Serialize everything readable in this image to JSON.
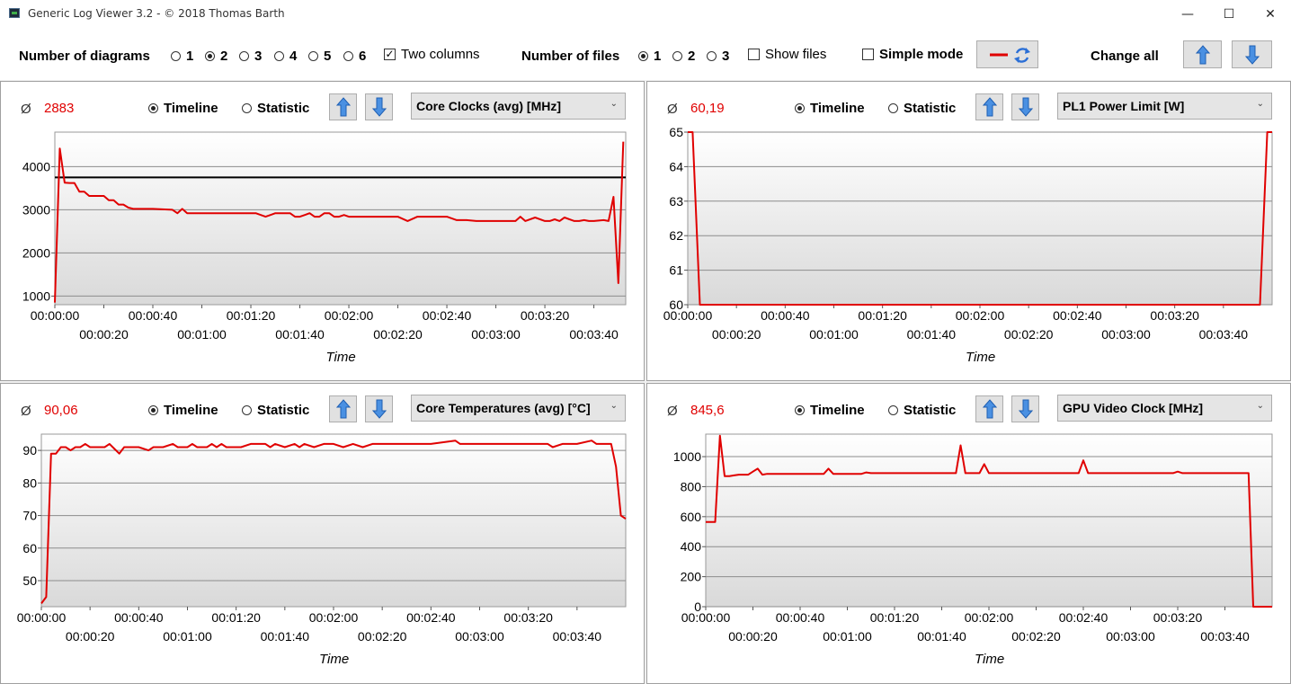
{
  "window": {
    "title": "Generic Log Viewer 3.2 - © 2018 Thomas Barth",
    "minimize": "—",
    "maximize": "☐",
    "close": "✕"
  },
  "toolbar": {
    "diagrams_label": "Number of diagrams",
    "diagram_options": [
      "1",
      "2",
      "3",
      "4",
      "5",
      "6"
    ],
    "diagrams_selected": "2",
    "two_columns_label": "Two columns",
    "two_columns_checked": true,
    "files_label": "Number of files",
    "file_options": [
      "1",
      "2",
      "3"
    ],
    "files_selected": "1",
    "show_files_label": "Show files",
    "show_files_checked": false,
    "simple_mode_label": "Simple mode",
    "simple_mode_checked": false,
    "change_all_label": "Change all",
    "line_color": "#e00000",
    "accent_color": "#2b6fd6"
  },
  "panels": [
    {
      "avg_symbol": "Ø",
      "avg": "2883",
      "timeline_label": "Timeline",
      "statistic_label": "Statistic",
      "selected_view": "Timeline",
      "sensor": "Core Clocks (avg) [MHz]",
      "x_title": "Time"
    },
    {
      "avg_symbol": "Ø",
      "avg": "60,19",
      "timeline_label": "Timeline",
      "statistic_label": "Statistic",
      "selected_view": "Timeline",
      "sensor": "PL1 Power Limit [W]",
      "x_title": "Time"
    },
    {
      "avg_symbol": "Ø",
      "avg": "90,06",
      "timeline_label": "Timeline",
      "statistic_label": "Statistic",
      "selected_view": "Timeline",
      "sensor": "Core Temperatures (avg) [°C]",
      "x_title": "Time"
    },
    {
      "avg_symbol": "Ø",
      "avg": "845,6",
      "timeline_label": "Timeline",
      "statistic_label": "Statistic",
      "selected_view": "Timeline",
      "sensor": "GPU Video Clock [MHz]",
      "x_title": "Time"
    }
  ],
  "chart_data": [
    {
      "type": "line",
      "title": "Core Clocks (avg) [MHz]",
      "xlabel": "Time",
      "ylabel": "",
      "x_unit": "seconds",
      "xlim": [
        0,
        233
      ],
      "ylim": [
        800,
        4800
      ],
      "yticks": [
        1000,
        2000,
        3000,
        4000
      ],
      "xticks": [
        "00:00:00",
        "00:00:20",
        "00:00:40",
        "00:01:00",
        "00:01:20",
        "00:01:40",
        "00:02:00",
        "00:02:20",
        "00:02:40",
        "00:03:00",
        "00:03:20",
        "00:03:40"
      ],
      "reference_line": 3750,
      "series": [
        {
          "x": [
            0,
            2,
            4,
            6,
            8,
            10,
            12,
            14,
            16,
            18,
            20,
            22,
            24,
            26,
            28,
            30,
            32,
            34,
            36,
            40,
            44,
            48,
            50,
            52,
            54,
            58,
            62,
            66,
            70,
            74,
            78,
            80,
            82,
            86,
            88,
            90,
            92,
            94,
            96,
            98,
            100,
            102,
            104,
            106,
            108,
            110,
            112,
            114,
            116,
            118,
            120,
            124,
            128,
            132,
            136,
            140,
            144,
            148,
            152,
            156,
            158,
            160,
            164,
            168,
            172,
            176,
            180,
            184,
            188,
            190,
            192,
            196,
            200,
            202,
            204,
            206,
            208,
            212,
            214,
            216,
            218,
            220,
            224,
            226,
            228,
            230,
            232
          ],
          "y": [
            850,
            4420,
            3630,
            3620,
            3620,
            3420,
            3420,
            3320,
            3320,
            3320,
            3320,
            3220,
            3220,
            3120,
            3120,
            3050,
            3020,
            3020,
            3020,
            3020,
            3010,
            3000,
            2920,
            3020,
            2920,
            2920,
            2920,
            2920,
            2920,
            2920,
            2920,
            2920,
            2920,
            2840,
            2880,
            2920,
            2920,
            2920,
            2920,
            2840,
            2840,
            2880,
            2920,
            2840,
            2840,
            2920,
            2920,
            2840,
            2840,
            2880,
            2840,
            2840,
            2840,
            2840,
            2840,
            2840,
            2740,
            2840,
            2840,
            2840,
            2840,
            2840,
            2760,
            2760,
            2740,
            2740,
            2740,
            2740,
            2740,
            2840,
            2740,
            2820,
            2740,
            2740,
            2780,
            2740,
            2820,
            2740,
            2740,
            2760,
            2740,
            2740,
            2760,
            2740,
            3300,
            1300,
            4580
          ]
        }
      ]
    },
    {
      "type": "line",
      "title": "PL1 Power Limit [W]",
      "xlabel": "Time",
      "ylabel": "",
      "x_unit": "seconds",
      "xlim": [
        0,
        240
      ],
      "ylim": [
        60,
        65
      ],
      "yticks": [
        60,
        61,
        62,
        63,
        64,
        65
      ],
      "xticks": [
        "00:00:00",
        "00:00:20",
        "00:00:40",
        "00:01:00",
        "00:01:20",
        "00:01:40",
        "00:02:00",
        "00:02:20",
        "00:02:40",
        "00:03:00",
        "00:03:20",
        "00:03:40"
      ],
      "series": [
        {
          "x": [
            0,
            2,
            5,
            235,
            238,
            240
          ],
          "y": [
            65,
            65,
            60,
            60,
            65,
            65
          ]
        }
      ]
    },
    {
      "type": "line",
      "title": "Core Temperatures (avg) [°C]",
      "xlabel": "Time",
      "ylabel": "",
      "x_unit": "seconds",
      "xlim": [
        0,
        240
      ],
      "ylim": [
        42,
        95
      ],
      "yticks": [
        50,
        60,
        70,
        80,
        90
      ],
      "xticks": [
        "00:00:00",
        "00:00:20",
        "00:00:40",
        "00:01:00",
        "00:01:20",
        "00:01:40",
        "00:02:00",
        "00:02:20",
        "00:02:40",
        "00:03:00",
        "00:03:20",
        "00:03:40"
      ],
      "series": [
        {
          "x": [
            0,
            2,
            4,
            6,
            8,
            10,
            12,
            14,
            16,
            18,
            20,
            22,
            24,
            26,
            28,
            32,
            34,
            36,
            40,
            44,
            46,
            50,
            54,
            56,
            60,
            62,
            64,
            68,
            70,
            72,
            74,
            76,
            78,
            82,
            86,
            90,
            92,
            94,
            96,
            100,
            104,
            106,
            108,
            112,
            116,
            120,
            124,
            128,
            132,
            136,
            138,
            140,
            150,
            160,
            170,
            172,
            180,
            190,
            194,
            198,
            208,
            210,
            214,
            216,
            220,
            226,
            228,
            230,
            234,
            236,
            238,
            240
          ],
          "y": [
            43,
            45,
            89,
            89,
            91,
            91,
            90,
            91,
            91,
            92,
            91,
            91,
            91,
            91,
            92,
            89,
            91,
            91,
            91,
            90,
            91,
            91,
            92,
            91,
            91,
            92,
            91,
            91,
            92,
            91,
            92,
            91,
            91,
            91,
            92,
            92,
            92,
            91,
            92,
            91,
            92,
            91,
            92,
            91,
            92,
            92,
            91,
            92,
            91,
            92,
            92,
            92,
            92,
            92,
            93,
            92,
            92,
            92,
            92,
            92,
            92,
            91,
            92,
            92,
            92,
            93,
            92,
            92,
            92,
            85,
            70,
            69
          ]
        }
      ]
    },
    {
      "type": "line",
      "title": "GPU Video Clock [MHz]",
      "xlabel": "Time",
      "ylabel": "",
      "x_unit": "seconds",
      "xlim": [
        0,
        240
      ],
      "ylim": [
        0,
        1150
      ],
      "yticks": [
        0,
        200,
        400,
        600,
        800,
        1000
      ],
      "xticks": [
        "00:00:00",
        "00:00:20",
        "00:00:40",
        "00:01:00",
        "00:01:20",
        "00:01:40",
        "00:02:00",
        "00:02:20",
        "00:02:40",
        "00:03:00",
        "00:03:20",
        "00:03:40"
      ],
      "series": [
        {
          "x": [
            0,
            4,
            6,
            8,
            10,
            12,
            14,
            16,
            18,
            20,
            22,
            24,
            26,
            28,
            30,
            40,
            50,
            52,
            54,
            60,
            66,
            68,
            70,
            80,
            90,
            100,
            106,
            108,
            110,
            112,
            116,
            118,
            120,
            126,
            130,
            140,
            150,
            158,
            160,
            162,
            170,
            180,
            190,
            198,
            200,
            202,
            210,
            220,
            228,
            230,
            232,
            236,
            240
          ],
          "y": [
            565,
            565,
            1140,
            870,
            870,
            875,
            880,
            880,
            880,
            900,
            920,
            880,
            885,
            885,
            885,
            885,
            885,
            920,
            885,
            885,
            885,
            895,
            890,
            890,
            890,
            890,
            890,
            1075,
            890,
            890,
            890,
            950,
            890,
            890,
            890,
            890,
            890,
            890,
            975,
            890,
            890,
            890,
            890,
            890,
            900,
            890,
            890,
            890,
            890,
            890,
            0,
            0,
            0
          ]
        }
      ]
    }
  ]
}
